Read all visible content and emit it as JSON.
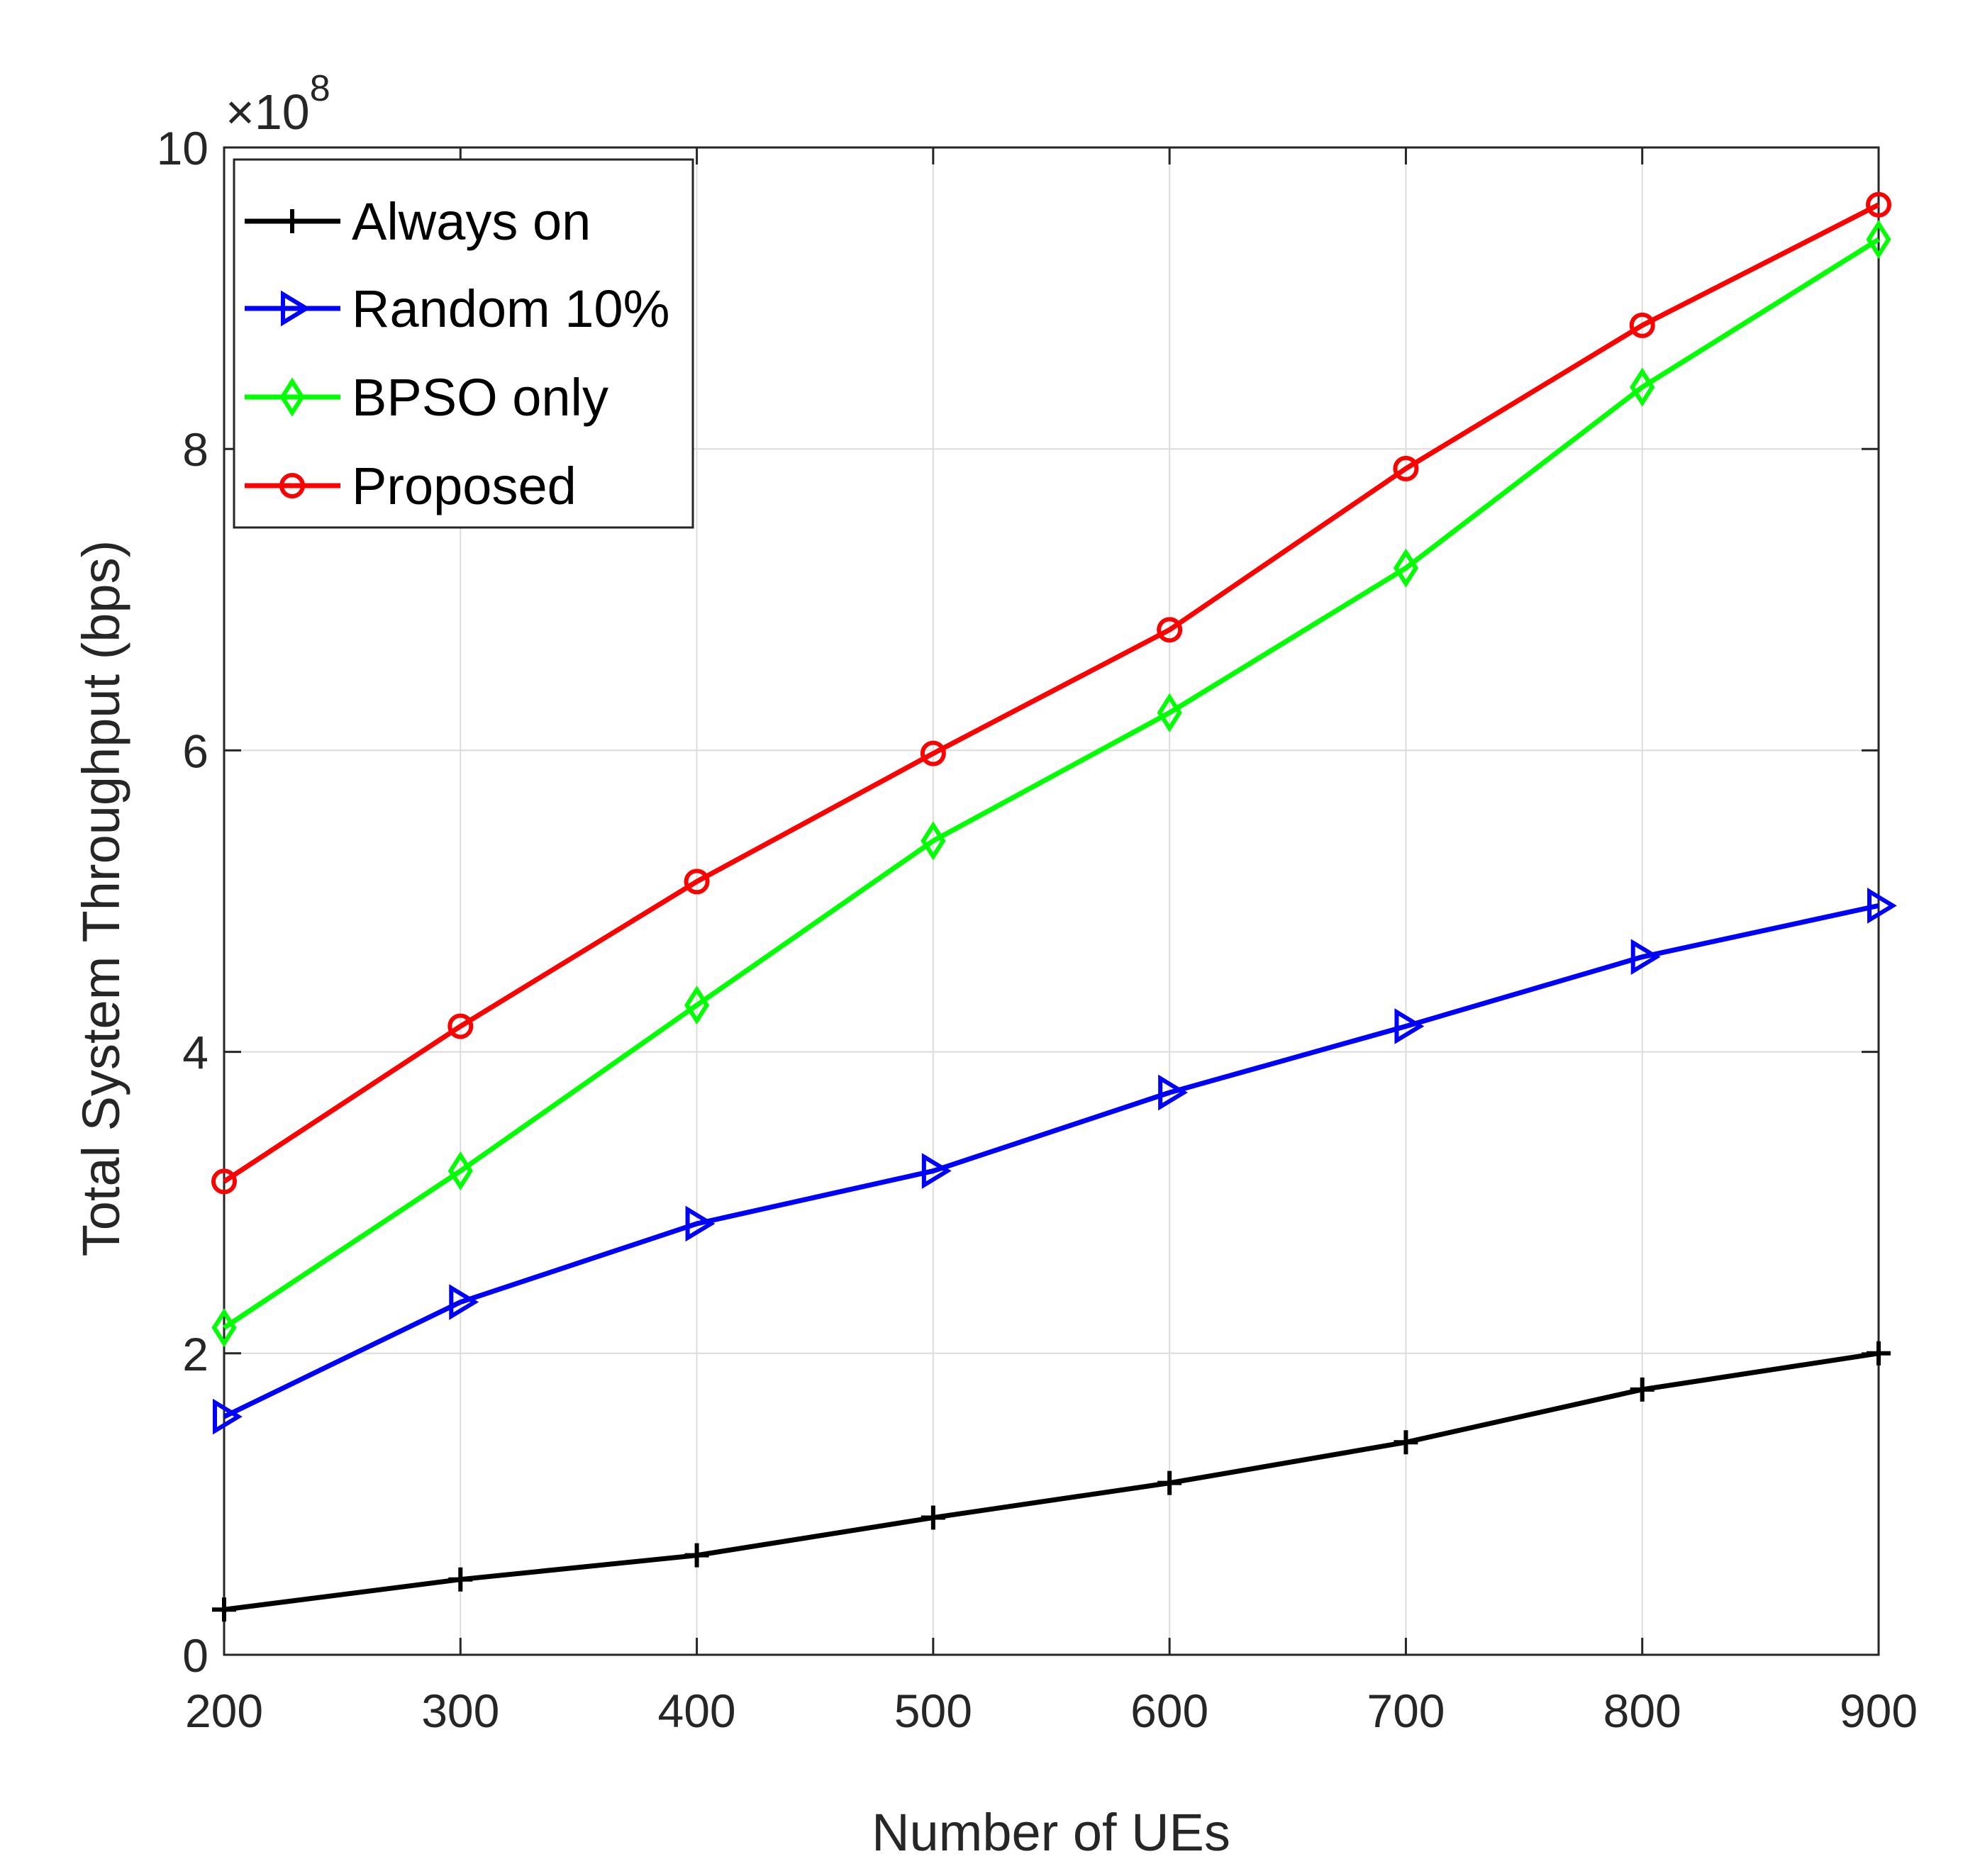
{
  "chart_data": {
    "type": "line",
    "xlabel": "Number of UEs",
    "ylabel": "Total System Throughput (bps)",
    "x": [
      200,
      300,
      400,
      500,
      600,
      700,
      800,
      900
    ],
    "xlim": [
      200,
      900
    ],
    "ylim": [
      0,
      10
    ],
    "xticks": [
      "200",
      "300",
      "400",
      "500",
      "600",
      "700",
      "800",
      "900"
    ],
    "yticks": [
      "0",
      "2",
      "4",
      "6",
      "8",
      "10"
    ],
    "y_multiplier": {
      "base": "×10",
      "exponent": "8"
    },
    "grid": true,
    "legend_position": "top-left",
    "series": [
      {
        "name": "Always on",
        "color": "#000000",
        "marker": "plus",
        "values": [
          0.3,
          0.5,
          0.66,
          0.91,
          1.14,
          1.41,
          1.76,
          2.0
        ]
      },
      {
        "name": "Random 10%",
        "color": "#0000ff",
        "marker": "triangle-right",
        "values": [
          1.58,
          2.34,
          2.86,
          3.21,
          3.73,
          4.17,
          4.63,
          4.97
        ]
      },
      {
        "name": "BPSO only",
        "color": "#00ff00",
        "marker": "diamond",
        "values": [
          2.17,
          3.21,
          4.31,
          5.4,
          6.25,
          7.21,
          8.41,
          9.39
        ]
      },
      {
        "name": "Proposed",
        "color": "#ff0000",
        "marker": "circle",
        "values": [
          3.14,
          4.17,
          5.13,
          5.98,
          6.8,
          7.87,
          8.82,
          9.62
        ]
      }
    ]
  }
}
